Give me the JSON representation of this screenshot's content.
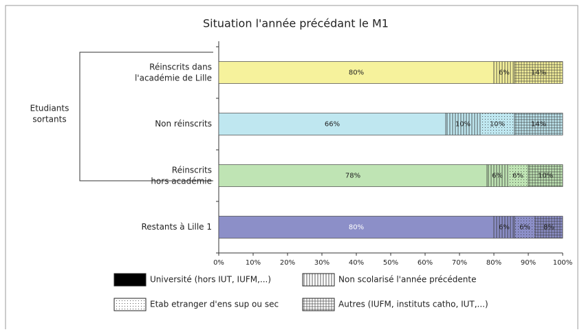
{
  "chart_data": {
    "type": "stacked_barh",
    "title": "Situation l'année précédant le M1",
    "categories": [
      "Réinscrits dans\nl'académie de Lille",
      "Non réinscrits",
      "Réinscrits\nhors académie",
      "Restants à Lille 1"
    ],
    "category_colors": [
      "#f6f29c",
      "#bfe7f0",
      "#bfe4b4",
      "#8c8fc8"
    ],
    "series": [
      {
        "name": "Université (hors IUT, IUFM,...)",
        "color": "#000000",
        "pattern": "solid",
        "values": [
          80,
          66,
          78,
          80
        ],
        "value_labels": [
          "80%",
          "66%",
          "78%",
          "80%"
        ]
      },
      {
        "name": "Non scolarisé l'année précédente",
        "color": "#ffffff",
        "pattern": "vertical",
        "values": [
          6,
          10,
          6,
          6
        ],
        "value_labels": [
          "6%",
          "10%",
          "6%",
          "6%"
        ]
      },
      {
        "name": "Etab etranger d'ens sup ou sec",
        "color": "#ffffff",
        "pattern": "dots",
        "values": [
          0,
          10,
          6,
          6
        ],
        "value_labels": [
          null,
          "10%",
          "6%",
          "6%"
        ]
      },
      {
        "name": "Autres (IUFM, instituts catho, IUT,...)",
        "color": "#ffffff",
        "pattern": "grid",
        "values": [
          14,
          14,
          10,
          8
        ],
        "value_labels": [
          "14%",
          "14%",
          "10%",
          "8%"
        ]
      }
    ],
    "xlim": [
      0,
      100
    ],
    "xticks": [
      {
        "value": 0,
        "label": "0%"
      },
      {
        "value": 10,
        "label": "10%"
      },
      {
        "value": 20,
        "label": "20%"
      },
      {
        "value": 30,
        "label": "30%"
      },
      {
        "value": 40,
        "label": "40%"
      },
      {
        "value": 50,
        "label": "50%"
      },
      {
        "value": 60,
        "label": "60%"
      },
      {
        "value": 70,
        "label": "70%"
      },
      {
        "value": 80,
        "label": "80%"
      },
      {
        "value": 90,
        "label": "90%"
      },
      {
        "value": 100,
        "label": "100%"
      }
    ],
    "group_label": "Etudiants\nsortants"
  }
}
